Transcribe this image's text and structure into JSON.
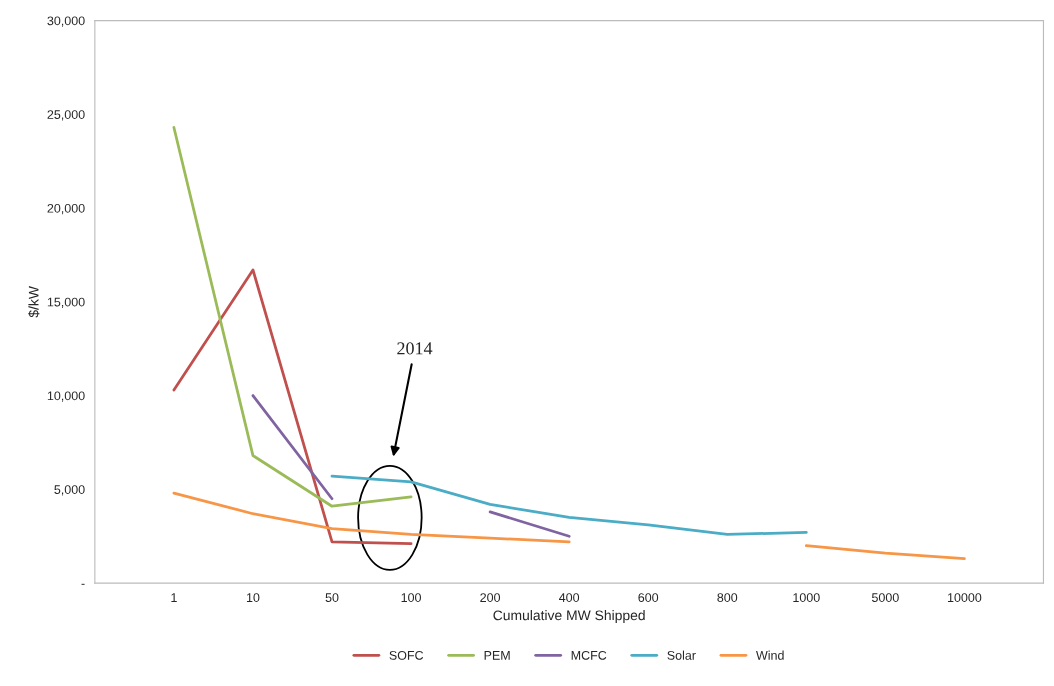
{
  "chart_data": {
    "type": "line",
    "xlabel": "Cumulative MW Shipped",
    "ylabel": "$/kW",
    "categories": [
      "1",
      "10",
      "50",
      "100",
      "200",
      "400",
      "600",
      "800",
      "1000",
      "5000",
      "10000"
    ],
    "series": [
      {
        "name": "SOFC",
        "color": "#c0504d",
        "values": [
          10300,
          16700,
          2200,
          2100,
          null,
          null,
          null,
          null,
          null,
          null,
          null
        ]
      },
      {
        "name": "PEM",
        "color": "#9bbb59",
        "values": [
          24300,
          6800,
          4100,
          4600,
          null,
          null,
          null,
          null,
          null,
          null,
          null
        ]
      },
      {
        "name": "MCFC",
        "color": "#8064a2",
        "values": [
          null,
          10000,
          4500,
          null,
          3800,
          2500,
          null,
          null,
          null,
          null,
          null
        ]
      },
      {
        "name": "Solar",
        "color": "#4bacc6",
        "values": [
          null,
          null,
          5700,
          5400,
          4200,
          3500,
          3100,
          2600,
          2700,
          null,
          null
        ]
      },
      {
        "name": "Wind",
        "color": "#f79646",
        "values": [
          4800,
          3700,
          2900,
          2600,
          2400,
          2200,
          null,
          null,
          2000,
          1600,
          1300
        ]
      }
    ],
    "ylim": [
      0,
      30000
    ],
    "yticks": [
      {
        "value": 0,
        "label": "-"
      },
      {
        "value": 5000,
        "label": "5,000"
      },
      {
        "value": 10000,
        "label": "10,000"
      },
      {
        "value": 15000,
        "label": "15,000"
      },
      {
        "value": 20000,
        "label": "20,000"
      },
      {
        "value": 25000,
        "label": "25,000"
      },
      {
        "value": 30000,
        "label": "30,000"
      }
    ],
    "annotations": [
      "2014"
    ],
    "grid": false,
    "legend": "bottom",
    "marker": "none",
    "line_style": "solid"
  }
}
